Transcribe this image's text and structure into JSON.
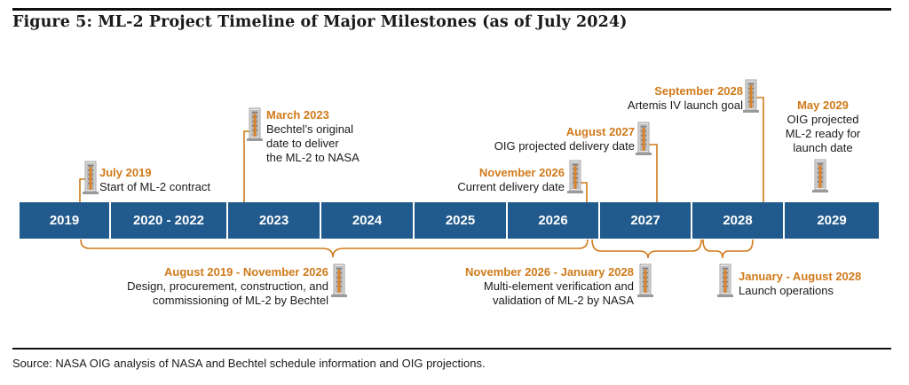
{
  "title": "Figure 5: ML-2 Project Timeline of Major Milestones (as of July 2024)",
  "source": "Source: NASA OIG analysis of NASA and Bechtel schedule information and OIG projections.",
  "colors": {
    "bar": "#215a8c",
    "accent": "#d07a1a",
    "text": "#1a1a1a"
  },
  "timeline": {
    "segments": [
      "2019",
      "2020 - 2022",
      "2023",
      "2024",
      "2025",
      "2026",
      "2027",
      "2028",
      "2029"
    ]
  },
  "milestones_above": [
    {
      "date": "July 2019",
      "text": "Start of ML-2 contract",
      "icon": "launch-tower-icon"
    },
    {
      "date": "March 2023",
      "lines": [
        "Bechtel’s original",
        "date to deliver",
        "the ML-2 to NASA"
      ],
      "icon": "launch-tower-icon"
    },
    {
      "date": "November 2026",
      "text": "Current delivery date",
      "icon": "launch-tower-icon"
    },
    {
      "date": "August 2027",
      "text": "OIG projected delivery date",
      "icon": "launch-tower-icon"
    },
    {
      "date": "September 2028",
      "text": "Artemis IV launch goal",
      "icon": "launch-tower-icon"
    },
    {
      "date": "May 2029",
      "lines": [
        "OIG projected",
        "ML-2 ready for",
        "launch date"
      ],
      "icon": "launch-tower-icon"
    }
  ],
  "periods_below": [
    {
      "date": "August 2019 - November 2026",
      "lines": [
        "Design, procurement, construction, and",
        "commissioning of ML-2 by Bechtel"
      ],
      "icon": "launch-tower-icon"
    },
    {
      "date": "November 2026 - January 2028",
      "lines": [
        "Multi-element verification and",
        "validation of ML-2 by NASA"
      ],
      "icon": "launch-tower-icon"
    },
    {
      "date": "January - August 2028",
      "text": "Launch operations",
      "icon": "launch-tower-icon"
    }
  ]
}
